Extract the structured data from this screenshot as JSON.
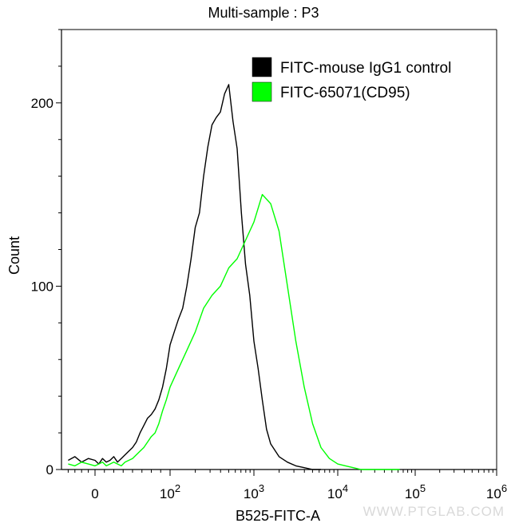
{
  "chart_data": {
    "type": "line",
    "title": "Multi-sample : P3",
    "xlabel": "B525-FITC-A",
    "ylabel": "Count",
    "x_scale": "biexponential",
    "xlim": [
      -0.5,
      6
    ],
    "ylim": [
      0,
      240
    ],
    "x_ticks": [
      {
        "pos": 0,
        "base": "0",
        "exp": ""
      },
      {
        "pos": 2,
        "base": "10",
        "exp": "2"
      },
      {
        "pos": 3,
        "base": "10",
        "exp": "3"
      },
      {
        "pos": 4,
        "base": "10",
        "exp": "4"
      },
      {
        "pos": 5,
        "base": "10",
        "exp": "5"
      },
      {
        "pos": 6,
        "base": "10",
        "exp": "6"
      }
    ],
    "y_ticks": [
      0,
      100,
      200
    ],
    "grid": false,
    "legend_position": "top-right",
    "series": [
      {
        "name": "FITC-mouse IgG1 control",
        "color": "#000000",
        "x": [
          -0.4,
          -0.3,
          -0.2,
          -0.1,
          0.0,
          0.1,
          0.2,
          0.3,
          0.4,
          0.5,
          0.6,
          0.7,
          0.8,
          0.9,
          1.0,
          1.1,
          1.2,
          1.3,
          1.4,
          1.5,
          1.6,
          1.7,
          1.8,
          1.9,
          2.0,
          2.05,
          2.1,
          2.15,
          2.2,
          2.25,
          2.3,
          2.35,
          2.4,
          2.45,
          2.5,
          2.55,
          2.6,
          2.65,
          2.7,
          2.75,
          2.8,
          2.85,
          2.9,
          2.95,
          3.0,
          3.05,
          3.1,
          3.15,
          3.2,
          3.3,
          3.4,
          3.5,
          3.6,
          3.7,
          3.8
        ],
        "y": [
          5,
          7,
          4,
          6,
          5,
          3,
          6,
          4,
          5,
          7,
          4,
          6,
          8,
          10,
          12,
          15,
          20,
          24,
          28,
          30,
          33,
          38,
          45,
          55,
          68,
          75,
          82,
          88,
          100,
          115,
          132,
          140,
          160,
          176,
          188,
          192,
          195,
          205,
          210,
          190,
          175,
          140,
          112,
          95,
          70,
          55,
          38,
          22,
          14,
          7,
          4,
          2,
          1,
          0,
          0
        ]
      },
      {
        "name": "FITC-65071(CD95)",
        "color": "#00ff00",
        "x": [
          -0.4,
          -0.3,
          -0.2,
          -0.1,
          0.0,
          0.1,
          0.2,
          0.3,
          0.4,
          0.5,
          0.6,
          0.7,
          0.8,
          0.9,
          1.0,
          1.1,
          1.2,
          1.3,
          1.4,
          1.5,
          1.6,
          1.7,
          1.8,
          1.9,
          2.0,
          2.1,
          2.2,
          2.3,
          2.4,
          2.5,
          2.6,
          2.7,
          2.8,
          2.9,
          3.0,
          3.1,
          3.2,
          3.3,
          3.4,
          3.5,
          3.6,
          3.7,
          3.8,
          3.9,
          4.0,
          4.1,
          4.2,
          4.3,
          4.4,
          4.5,
          4.6,
          4.7,
          4.8
        ],
        "y": [
          3,
          2,
          4,
          3,
          2,
          3,
          4,
          2,
          3,
          4,
          3,
          2,
          4,
          5,
          6,
          8,
          10,
          12,
          15,
          18,
          20,
          25,
          32,
          38,
          45,
          55,
          65,
          75,
          88,
          95,
          100,
          110,
          115,
          125,
          135,
          150,
          145,
          130,
          100,
          70,
          45,
          25,
          12,
          6,
          3,
          2,
          1,
          0,
          0,
          0,
          0,
          0,
          0
        ]
      }
    ]
  },
  "watermark": "WWW.PTGLAB.COM"
}
